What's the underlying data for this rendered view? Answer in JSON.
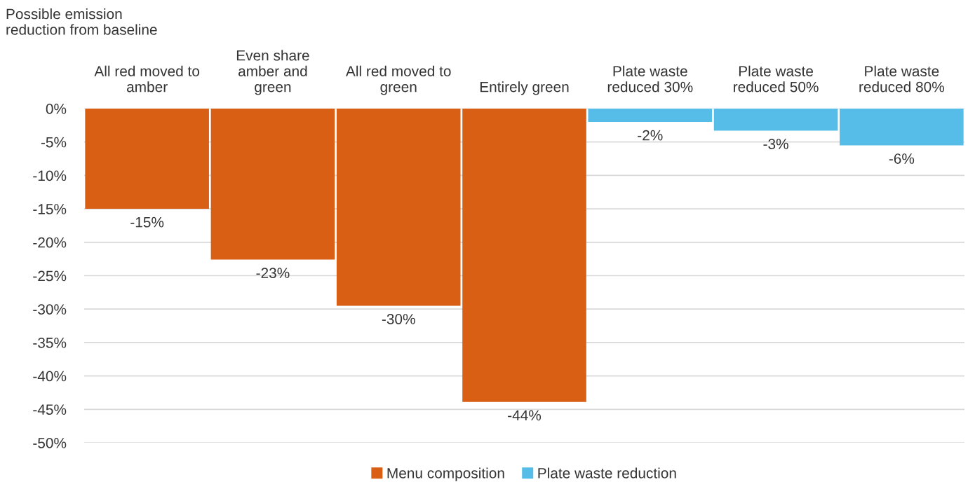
{
  "chart_data": {
    "type": "bar",
    "ylabel": "Possible emission\nreduction from baseline",
    "categories": [
      "All red moved to\namber",
      "Even share\namber and\ngreen",
      "All red moved to\ngreen",
      "Entirely green",
      "Plate waste\nreduced 30%",
      "Plate waste\nreduced 50%",
      "Plate waste\nreduced 80%"
    ],
    "series": [
      {
        "name": "Menu composition",
        "color": "#d95f14",
        "values": [
          -15.0,
          -22.6,
          -29.5,
          -43.9,
          null,
          null,
          null
        ],
        "value_labels": [
          "-15%",
          "-23%",
          "-30%",
          "-44%",
          null,
          null,
          null
        ]
      },
      {
        "name": "Plate waste reduction",
        "color": "#56bde8",
        "values": [
          null,
          null,
          null,
          null,
          -2.0,
          -3.3,
          -5.5
        ],
        "value_labels": [
          null,
          null,
          null,
          null,
          "-2%",
          "-3%",
          "-6%"
        ]
      }
    ],
    "ylim": [
      -50,
      0
    ],
    "yticks": [
      {
        "value": 0,
        "label": "0%"
      },
      {
        "value": -5,
        "label": "-5%"
      },
      {
        "value": -10,
        "label": "-10%"
      },
      {
        "value": -15,
        "label": "-15%"
      },
      {
        "value": -20,
        "label": "-20%"
      },
      {
        "value": -25,
        "label": "-25%"
      },
      {
        "value": -30,
        "label": "-30%"
      },
      {
        "value": -35,
        "label": "-35%"
      },
      {
        "value": -40,
        "label": "-40%"
      },
      {
        "value": -45,
        "label": "-45%"
      },
      {
        "value": -50,
        "label": "-50%"
      }
    ],
    "grid": "y",
    "legend": "bottom"
  }
}
